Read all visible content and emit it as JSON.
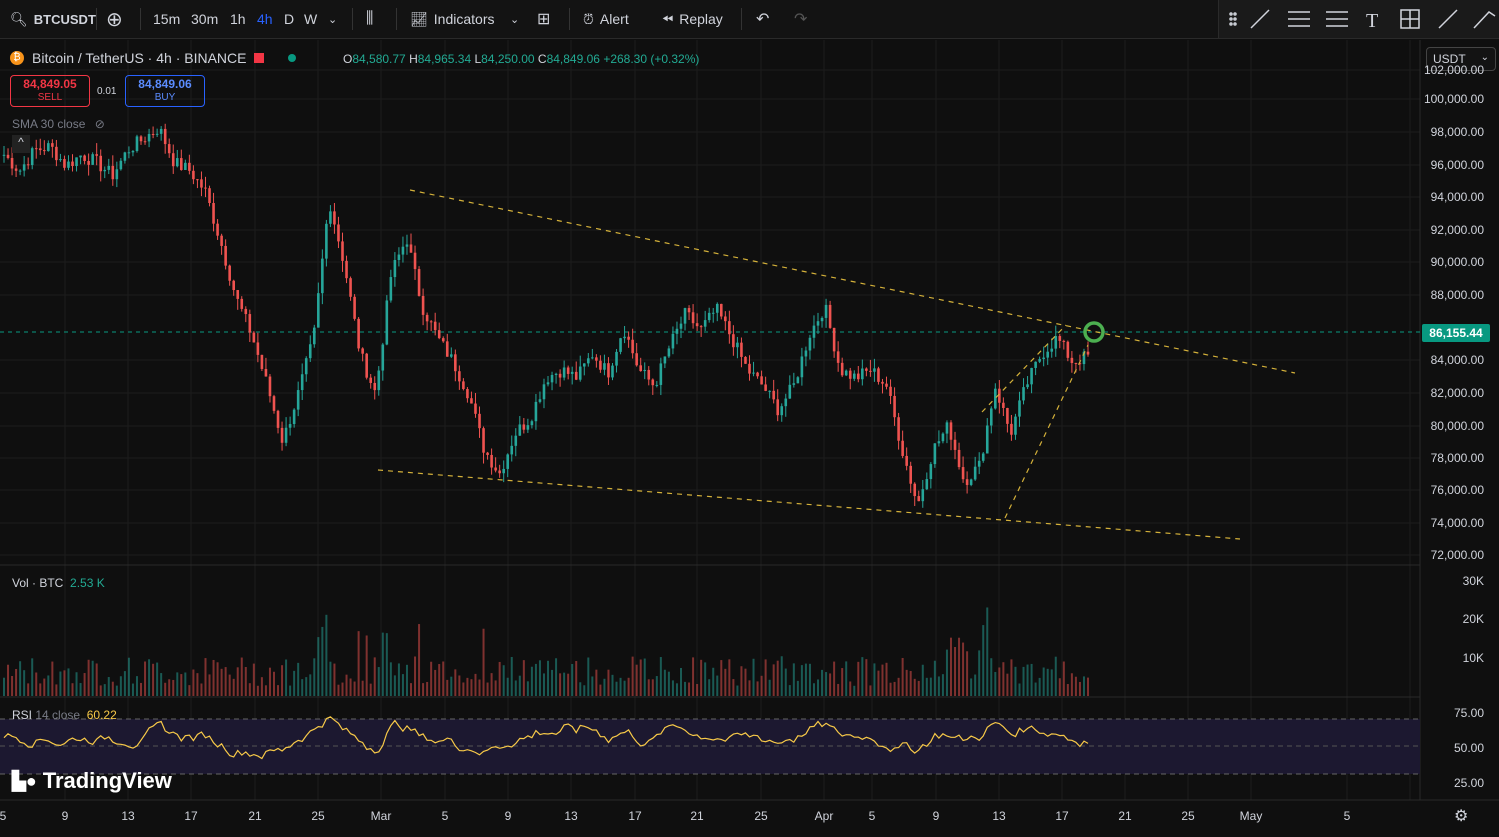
{
  "toolbar": {
    "symbol": "BTCUSDT",
    "timeframes": [
      "15m",
      "30m",
      "1h",
      "4h",
      "D",
      "W"
    ],
    "active_timeframe": "4h",
    "indicators_label": "Indicators",
    "alert_label": "Alert",
    "replay_label": "Replay"
  },
  "legend": {
    "title": "Bitcoin / TetherUS · 4h · BINANCE",
    "open_k": "O",
    "open": "84,580.77",
    "high_k": "H",
    "high": "84,965.34",
    "low_k": "L",
    "low": "84,250.00",
    "close_k": "C",
    "close": "84,849.06",
    "change": "+268.30 (+0.32%)"
  },
  "trade": {
    "sell_price": "84,849.05",
    "sell_label": "SELL",
    "quantity": "0.01",
    "buy_price": "84,849.06",
    "buy_label": "BUY"
  },
  "sma_label": "SMA 30 close",
  "currency": "USDT",
  "price_axis": [
    "102,000.00",
    "100,000.00",
    "98,000.00",
    "96,000.00",
    "94,000.00",
    "92,000.00",
    "90,000.00",
    "88,000.00",
    "84,000.00",
    "82,000.00",
    "80,000.00",
    "78,000.00",
    "76,000.00",
    "74,000.00",
    "72,000.00"
  ],
  "last_price": "86,155.44",
  "volume": {
    "label": "Vol · BTC",
    "value": "2.53 K",
    "axis": [
      "30K",
      "20K",
      "10K"
    ]
  },
  "rsi": {
    "label": "RSI",
    "params": "14 close",
    "value": "60.22",
    "axis": [
      "75.00",
      "50.00",
      "25.00"
    ]
  },
  "time_axis": [
    "5",
    "9",
    "13",
    "17",
    "21",
    "25",
    "Mar",
    "5",
    "9",
    "13",
    "17",
    "21",
    "25",
    "Apr",
    "5",
    "9",
    "13",
    "17",
    "21",
    "25",
    "May",
    "5"
  ],
  "brand": "TradingView",
  "colors": {
    "up": "#26a69a",
    "down": "#ef5350",
    "trendline": "#d4b13a",
    "rsi": "#f7c948",
    "last_price": "#089981"
  },
  "chart_data": {
    "type": "candlestick",
    "timeframe": "4h",
    "series_close_approx": [
      97500,
      96500,
      97800,
      98000,
      96800,
      97500,
      97000,
      96200,
      97800,
      98500,
      99200,
      97000,
      96500,
      95200,
      92000,
      88500,
      86200,
      83000,
      79500,
      82500,
      86000,
      94700,
      90500,
      85000,
      82500,
      90000,
      92300,
      88000,
      86000,
      84500,
      82500,
      79000,
      77500,
      80000,
      81000,
      83500,
      84000,
      83500,
      85000,
      83800,
      86700,
      84000,
      83000,
      85500,
      87500,
      86500,
      87800,
      86000,
      84000,
      83000,
      81500,
      83000,
      86200,
      88000,
      84000,
      83500,
      84000,
      83000,
      79000,
      75500,
      79000,
      80500,
      77000,
      78000,
      83000,
      80000,
      83000,
      85000,
      86000,
      84500,
      84850
    ],
    "trendlines": [
      {
        "name": "upper",
        "from": [
          "Mar 3",
          95000
        ],
        "to": [
          "Apr 13",
          86500
        ]
      },
      {
        "name": "lower",
        "from": [
          "Feb 28",
          78000
        ],
        "to": [
          "Apr 9",
          74500
        ]
      },
      {
        "name": "wedge-top",
        "from": [
          "Apr 7",
          81500
        ],
        "to": [
          "Apr 13",
          86500
        ]
      },
      {
        "name": "wedge-bottom",
        "from": [
          "Apr 9",
          74500
        ],
        "to": [
          "Apr 14",
          84500
        ]
      }
    ],
    "ylim": [
      72000,
      102000
    ],
    "rsi_levels": [
      70,
      50,
      30
    ]
  }
}
